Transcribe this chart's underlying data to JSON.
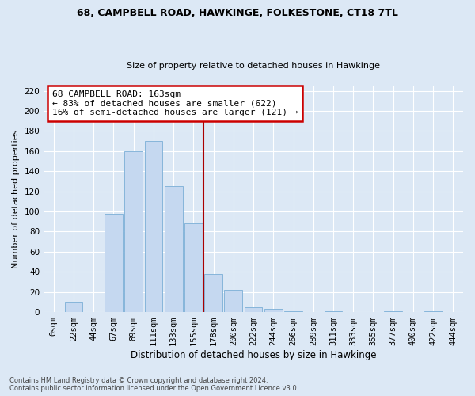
{
  "title": "68, CAMPBELL ROAD, HAWKINGE, FOLKESTONE, CT18 7TL",
  "subtitle": "Size of property relative to detached houses in Hawkinge",
  "xlabel": "Distribution of detached houses by size in Hawkinge",
  "ylabel": "Number of detached properties",
  "bin_labels": [
    "0sqm",
    "22sqm",
    "44sqm",
    "67sqm",
    "89sqm",
    "111sqm",
    "133sqm",
    "155sqm",
    "178sqm",
    "200sqm",
    "222sqm",
    "244sqm",
    "266sqm",
    "289sqm",
    "311sqm",
    "333sqm",
    "355sqm",
    "377sqm",
    "400sqm",
    "422sqm",
    "444sqm"
  ],
  "bar_values": [
    0,
    10,
    0,
    98,
    160,
    170,
    125,
    88,
    38,
    22,
    5,
    3,
    1,
    0,
    1,
    0,
    0,
    1,
    0,
    1,
    0
  ],
  "bar_color": "#c5d8f0",
  "bar_edge_color": "#7aaed6",
  "vline_x": 7.5,
  "annotation_title": "68 CAMPBELL ROAD: 163sqm",
  "annotation_line1": "← 83% of detached houses are smaller (622)",
  "annotation_line2": "16% of semi-detached houses are larger (121) →",
  "annotation_box_color": "#ffffff",
  "annotation_box_edge": "#cc0000",
  "vline_color": "#aa0000",
  "ylim": [
    0,
    225
  ],
  "yticks": [
    0,
    20,
    40,
    60,
    80,
    100,
    120,
    140,
    160,
    180,
    200,
    220
  ],
  "footer1": "Contains HM Land Registry data © Crown copyright and database right 2024.",
  "footer2": "Contains public sector information licensed under the Open Government Licence v3.0.",
  "bg_color": "#dce8f5",
  "plot_bg_color": "#dce8f5",
  "grid_color": "#ffffff",
  "title_fontsize": 9.0,
  "subtitle_fontsize": 8.0,
  "ylabel_fontsize": 8.0,
  "xlabel_fontsize": 8.5,
  "tick_fontsize": 7.5,
  "annot_fontsize": 8.0,
  "footer_fontsize": 6.0
}
